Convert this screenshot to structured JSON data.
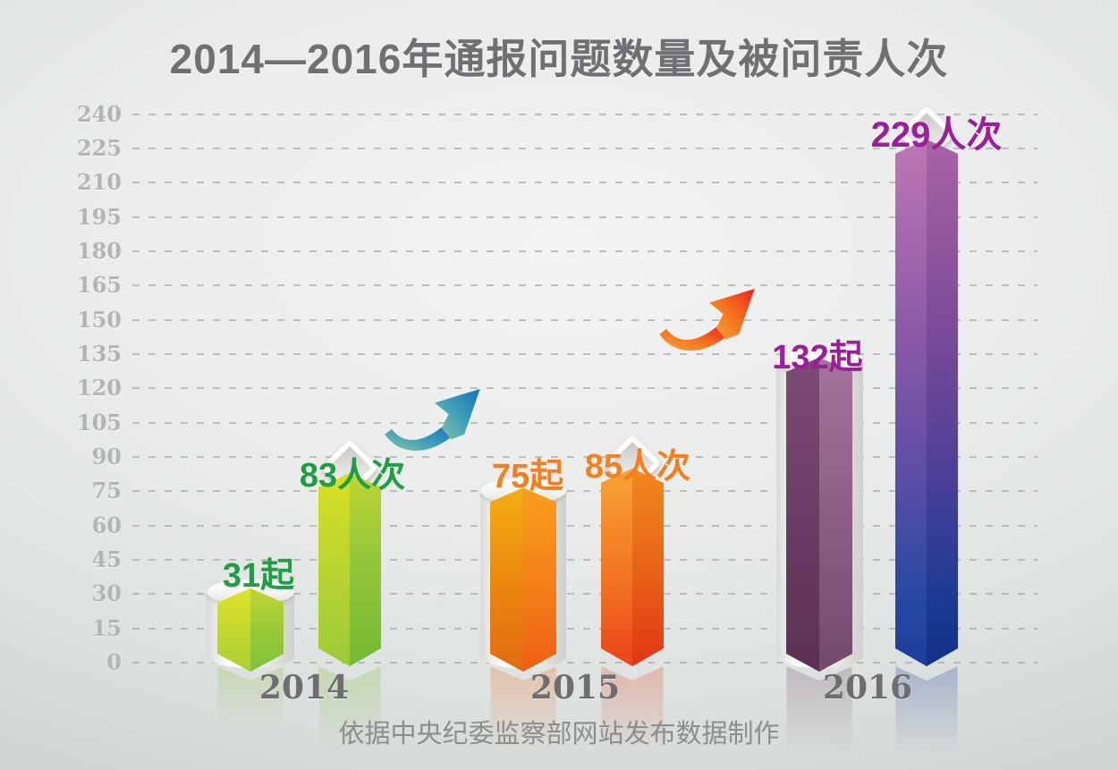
{
  "chart_data": {
    "type": "bar",
    "title": "2014—2016年通报问题数量及被问责人次",
    "source_note": "依据中央纪委监察部网站发布数据制作",
    "categories": [
      "2014",
      "2015",
      "2016"
    ],
    "series": [
      {
        "name": "通报问题数量",
        "unit": "起",
        "values": [
          31,
          75,
          132
        ],
        "labels": [
          "31起",
          "75起",
          "132起"
        ]
      },
      {
        "name": "被问责人次",
        "unit": "人次",
        "values": [
          83,
          85,
          229
        ],
        "labels": [
          "83人次",
          "85人次",
          "229人次"
        ]
      }
    ],
    "groups": [
      {
        "year": "2014",
        "accent": "#1f9f44"
      },
      {
        "year": "2015",
        "accent": "#f57e1e"
      },
      {
        "year": "2016",
        "accent": "#9b1f98"
      }
    ],
    "ylim": [
      0,
      240
    ],
    "ytick_step": 15,
    "yticks": [
      0,
      15,
      30,
      45,
      60,
      75,
      90,
      105,
      120,
      135,
      150,
      165,
      180,
      195,
      210,
      225,
      240
    ],
    "grid": "dashed-horizontal",
    "legend": "none",
    "annotations": [
      {
        "name": "growth-arrow",
        "between": [
          "2014",
          "2015"
        ]
      },
      {
        "name": "growth-arrow",
        "between": [
          "2015",
          "2016"
        ]
      }
    ]
  }
}
